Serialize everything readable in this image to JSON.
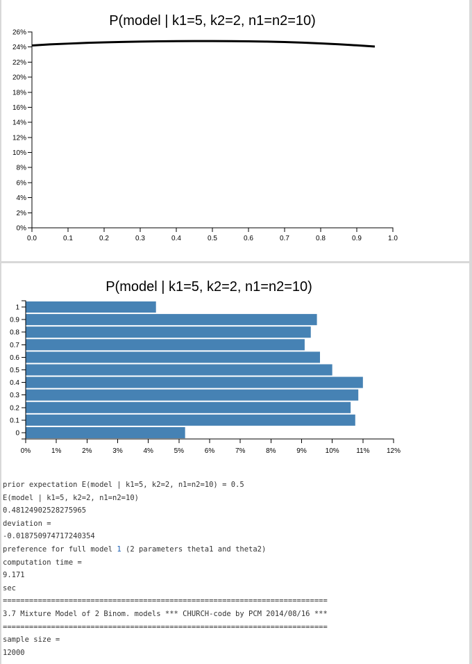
{
  "charts": [
    {
      "title": "P(model | k1=5, k2=2, n1=n2=10)",
      "chart_data": {
        "type": "line",
        "x": [
          0.0,
          0.05,
          0.1,
          0.15,
          0.2,
          0.25,
          0.3,
          0.35,
          0.4,
          0.45,
          0.5,
          0.55,
          0.6,
          0.65,
          0.7,
          0.75,
          0.8,
          0.85,
          0.9,
          0.95
        ],
        "y": [
          24.2,
          24.35,
          24.45,
          24.55,
          24.62,
          24.68,
          24.72,
          24.76,
          24.78,
          24.79,
          24.79,
          24.78,
          24.76,
          24.72,
          24.66,
          24.58,
          24.48,
          24.36,
          24.22,
          24.06
        ],
        "xlim": [
          0,
          1
        ],
        "ylim": [
          0,
          26
        ],
        "x_ticks": [
          "0.0",
          "0.1",
          "0.2",
          "0.3",
          "0.4",
          "0.5",
          "0.6",
          "0.7",
          "0.8",
          "0.9",
          "1.0"
        ],
        "y_ticks": [
          "0%",
          "2%",
          "4%",
          "6%",
          "8%",
          "10%",
          "12%",
          "14%",
          "16%",
          "18%",
          "20%",
          "22%",
          "24%",
          "26%"
        ],
        "xlabel": "",
        "ylabel": ""
      }
    },
    {
      "title": "P(model | k1=5, k2=2, n1=n2=10)",
      "chart_data": {
        "type": "bar",
        "orientation": "horizontal",
        "categories": [
          "1",
          "0.9",
          "0.8",
          "0.7",
          "0.6",
          "0.5",
          "0.4",
          "0.3",
          "0.2",
          "0.1",
          "0"
        ],
        "values": [
          4.25,
          9.5,
          9.3,
          9.1,
          9.6,
          10.0,
          11.0,
          10.85,
          10.6,
          10.75,
          5.2
        ],
        "xlim": [
          0,
          12
        ],
        "x_ticks": [
          "0%",
          "1%",
          "2%",
          "3%",
          "4%",
          "5%",
          "6%",
          "7%",
          "8%",
          "9%",
          "10%",
          "11%",
          "12%"
        ],
        "xlabel": "",
        "ylabel": "",
        "color": "#4682b4"
      }
    }
  ],
  "log": {
    "line1": "prior expectation E(model | k1=5, k2=2, n1=n2=10) = 0.5",
    "line2": "E(model | k1=5, k2=2, n1=n2=10)",
    "line3": "0.48124902528275965",
    "line4": "deviation =",
    "line5": "-0.018750974717240354",
    "line6_pre": "preference for full model ",
    "line6_num": "1",
    "line6_post": " (2 parameters theta1 and theta2)",
    "line7": "computation time =",
    "line8": "9.171",
    "line9": "sec",
    "rule1": "==========================================================================",
    "line10": "3.7 Mixture Model of 2 Binom. models *** CHURCH-code by PCM 2014/08/16 ***",
    "rule2": "==========================================================================",
    "line11": "sample size =",
    "line12": "12000"
  }
}
